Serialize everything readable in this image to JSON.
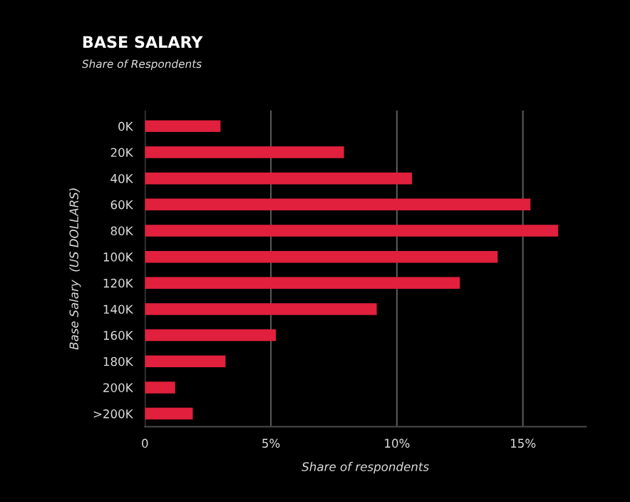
{
  "chart_data": {
    "type": "bar",
    "orientation": "horizontal",
    "title": "BASE SALARY",
    "subtitle": "Share of Respondents",
    "xlabel": "Share of respondents",
    "ylabel": "Base Salary  (US DOLLARS)",
    "categories": [
      "0K",
      "20K",
      "40K",
      "60K",
      "80K",
      "100K",
      "120K",
      "140K",
      "160K",
      "180K",
      "200K",
      ">200K"
    ],
    "values": [
      3.0,
      7.9,
      10.6,
      15.3,
      16.4,
      14.0,
      12.5,
      9.2,
      5.2,
      3.2,
      1.2,
      1.9
    ],
    "color": "#e0203c",
    "xlim": [
      0,
      17.5
    ],
    "xticks": [
      {
        "value": 0,
        "label": "0"
      },
      {
        "value": 5,
        "label": "5%"
      },
      {
        "value": 10,
        "label": "10%"
      },
      {
        "value": 15,
        "label": "15%"
      }
    ],
    "grid": "x",
    "legend": false
  }
}
